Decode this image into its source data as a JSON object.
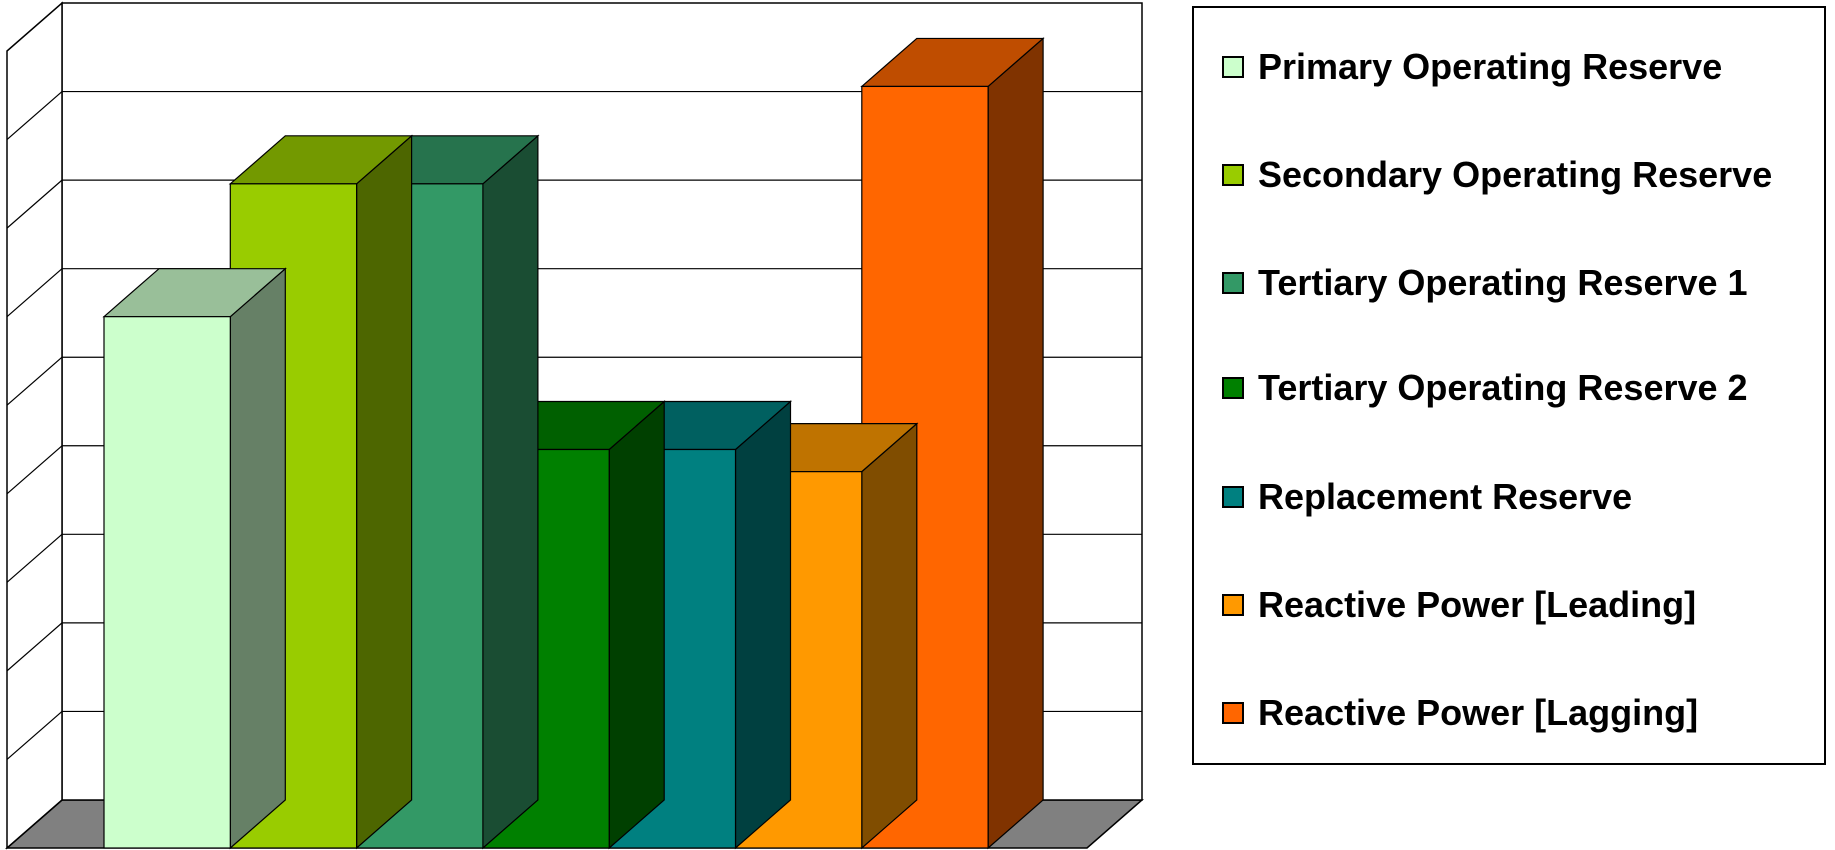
{
  "chart_data": {
    "type": "bar",
    "title": "",
    "xlabel": "",
    "ylabel": "",
    "grid": true,
    "legend_position": "right",
    "ylim": [
      0,
      9
    ],
    "series": [
      {
        "name": "Primary Operating Reserve",
        "value": 6.0,
        "color": "#CCFFCC"
      },
      {
        "name": "Secondary Operating Reserve",
        "value": 7.5,
        "color": "#99CC00"
      },
      {
        "name": "Tertiary Operating Reserve 1",
        "value": 7.5,
        "color": "#339966"
      },
      {
        "name": "Tertiary Operating Reserve 2",
        "value": 4.5,
        "color": "#008000"
      },
      {
        "name": "Replacement Reserve",
        "value": 4.5,
        "color": "#008080"
      },
      {
        "name": "Reactive Power [Leading]",
        "value": 4.25,
        "color": "#FF9900"
      },
      {
        "name": "Reactive Power [Lagging]",
        "value": 8.6,
        "color": "#FF6600"
      }
    ]
  },
  "legend": {
    "items": [
      "Primary Operating Reserve",
      "Secondary Operating Reserve",
      "Tertiary Operating Reserve 1",
      "Tertiary Operating Reserve 2",
      "Replacement Reserve",
      "Reactive Power [Leading]",
      "Reactive Power [Lagging]"
    ]
  }
}
